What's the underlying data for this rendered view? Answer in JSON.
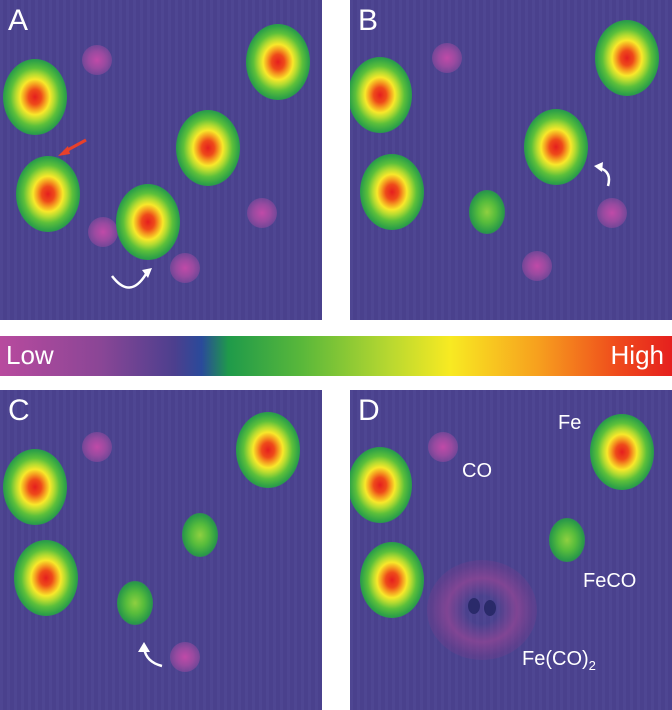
{
  "panels": {
    "a": {
      "label": "A"
    },
    "b": {
      "label": "B"
    },
    "c": {
      "label": "C"
    },
    "d": {
      "label": "D",
      "annotations": {
        "fe": "Fe",
        "co": "CO",
        "feco": "FeCO",
        "feco2_main": "Fe(CO)",
        "feco2_sub": "2"
      }
    }
  },
  "colorbar": {
    "low": "Low",
    "high": "High"
  },
  "colors": {
    "background": "#4b4290",
    "arrow_red": "#e8402a",
    "arrow_white": "#ffffff"
  }
}
